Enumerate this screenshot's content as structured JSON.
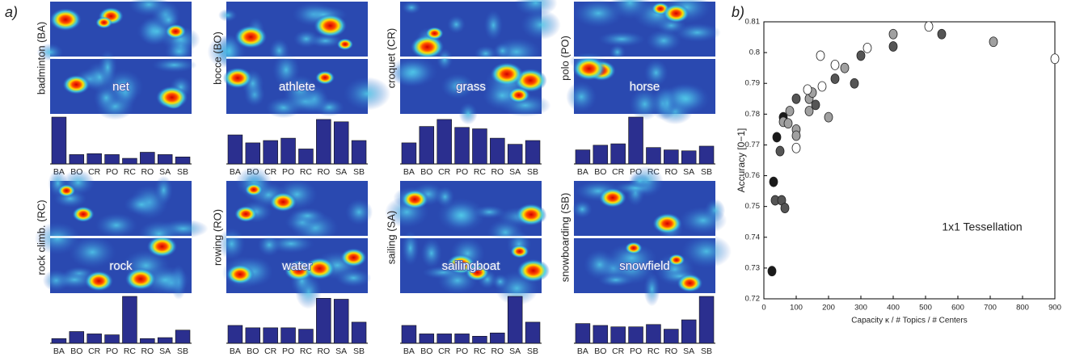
{
  "panel_a": {
    "label": "a)",
    "categories": [
      "BA",
      "BO",
      "CR",
      "PO",
      "RC",
      "RO",
      "SA",
      "SB"
    ],
    "groups": [
      {
        "name": "badminton (BA)",
        "word": "net",
        "values": [
          1.0,
          0.2,
          0.22,
          0.2,
          0.12,
          0.25,
          0.2,
          0.15
        ]
      },
      {
        "name": "bocce (BO)",
        "word": "athlete",
        "values": [
          0.62,
          0.45,
          0.5,
          0.55,
          0.32,
          0.95,
          0.9,
          0.5
        ]
      },
      {
        "name": "croquet (CR)",
        "word": "grass",
        "values": [
          0.45,
          0.8,
          0.95,
          0.78,
          0.75,
          0.55,
          0.42,
          0.5
        ]
      },
      {
        "name": "polo (PO)",
        "word": "horse",
        "values": [
          0.3,
          0.4,
          0.43,
          1.0,
          0.35,
          0.3,
          0.28,
          0.38
        ]
      },
      {
        "name": "rock climb. (RC)",
        "word": "rock",
        "values": [
          0.1,
          0.25,
          0.2,
          0.18,
          1.0,
          0.1,
          0.12,
          0.28
        ]
      },
      {
        "name": "rowing (RO)",
        "word": "water",
        "values": [
          0.38,
          0.33,
          0.33,
          0.33,
          0.3,
          0.96,
          0.94,
          0.45
        ]
      },
      {
        "name": "sailing (SA)",
        "word": "sailingboat",
        "values": [
          0.38,
          0.2,
          0.2,
          0.2,
          0.15,
          0.22,
          1.0,
          0.45
        ]
      },
      {
        "name": "snowboarding (SB)",
        "word": "snowfield",
        "values": [
          0.42,
          0.38,
          0.35,
          0.35,
          0.4,
          0.3,
          0.5,
          1.0
        ]
      }
    ]
  },
  "chart_data": {
    "type": "scatter",
    "panel_label": "b)",
    "xlabel": "Capacity  κ / # Topics / # Centers",
    "ylabel": "Accuracy [0−1]",
    "annotation": "1x1 Tessellation",
    "xlim": [
      0,
      900
    ],
    "ylim": [
      0.72,
      0.81
    ],
    "xticks": [
      0,
      100,
      200,
      300,
      400,
      500,
      600,
      700,
      800,
      900
    ],
    "yticks": [
      0.72,
      0.73,
      0.74,
      0.75,
      0.76,
      0.77,
      0.78,
      0.79,
      0.8,
      0.81
    ],
    "series": [
      {
        "color": "#1a1a1a",
        "x": [
          25,
          30,
          40,
          60
        ],
        "values": [
          0.729,
          0.758,
          0.7725,
          0.779
        ]
      },
      {
        "color": "#555555",
        "x": [
          35,
          50,
          55,
          65,
          100,
          160,
          220,
          280,
          300,
          400,
          550
        ],
        "values": [
          0.752,
          0.768,
          0.752,
          0.7495,
          0.785,
          0.783,
          0.7915,
          0.79,
          0.799,
          0.802,
          0.806
        ]
      },
      {
        "color": "#a0a0a0",
        "x": [
          60,
          75,
          80,
          100,
          100,
          140,
          140,
          150,
          200,
          250,
          400,
          710
        ],
        "values": [
          0.7775,
          0.777,
          0.781,
          0.775,
          0.773,
          0.781,
          0.785,
          0.787,
          0.779,
          0.795,
          0.806,
          0.8035
        ]
      },
      {
        "color": "#ffffff",
        "x": [
          100,
          135,
          175,
          180,
          220,
          320,
          510,
          900
        ],
        "values": [
          0.769,
          0.788,
          0.799,
          0.789,
          0.796,
          0.8015,
          0.8085,
          0.798
        ]
      }
    ]
  }
}
